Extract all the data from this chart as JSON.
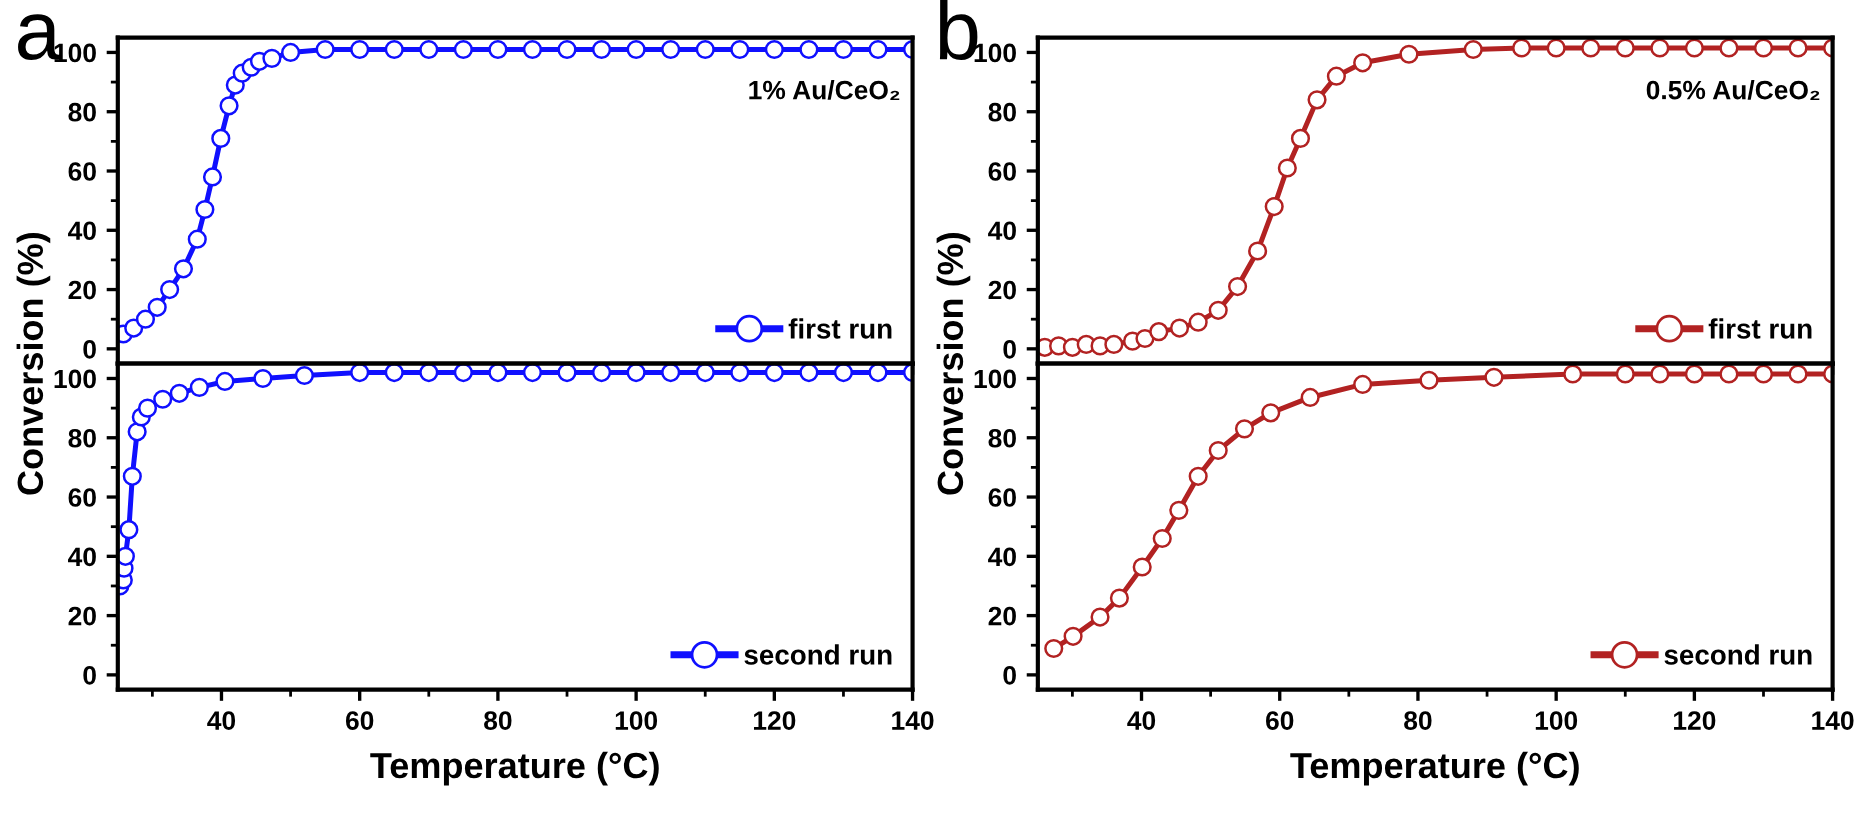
{
  "chart_data": [
    {
      "type": "line",
      "ylabel": "Conversion (%)",
      "annotations": [
        "a",
        "1% Au/CeO₂"
      ],
      "xlim": [
        25,
        140
      ],
      "xticks": [
        40,
        60,
        80,
        100,
        120,
        140
      ],
      "ylim": [
        -5,
        105
      ],
      "yticks": [
        0,
        20,
        40,
        60,
        80,
        100
      ],
      "tick_labels": "y",
      "marker": "circle",
      "line_style": "solid",
      "legend": "bottom right",
      "grid": false,
      "series": [
        {
          "name": "first run",
          "color": "#1010ff",
          "x": [
            25.8,
            27.3,
            29,
            30.7,
            32.5,
            34.5,
            36.5,
            37.6,
            38.7,
            39.9,
            41.1,
            42,
            43,
            44.3,
            45.5,
            47.3,
            50,
            55,
            60,
            65,
            70,
            75,
            80,
            85,
            90,
            95,
            100,
            105,
            110,
            115,
            120,
            125,
            130,
            135,
            140
          ],
          "values": [
            5,
            7,
            10,
            14,
            20,
            27,
            37,
            47,
            58,
            71,
            82,
            89,
            93,
            95,
            97,
            98,
            100,
            101,
            101,
            101,
            101,
            101,
            101,
            101,
            101,
            101,
            101,
            101,
            101,
            101,
            101,
            101,
            101,
            101,
            101
          ]
        }
      ]
    },
    {
      "type": "line",
      "xlabel": "Temperature (°C)",
      "xlim": [
        25,
        140
      ],
      "xticks": [
        40,
        60,
        80,
        100,
        120,
        140
      ],
      "ylim": [
        -5,
        105
      ],
      "yticks": [
        0,
        20,
        40,
        60,
        80,
        100
      ],
      "marker": "circle",
      "line_style": "solid",
      "legend": "bottom right",
      "grid": false,
      "series": [
        {
          "name": "second run",
          "color": "#1010ff",
          "x": [
            25.3,
            25.8,
            25.9,
            26.1,
            26.6,
            27.1,
            27.8,
            28.4,
            29.3,
            31.5,
            33.9,
            36.8,
            40.5,
            46,
            52,
            60,
            65,
            70,
            75,
            80,
            85,
            90,
            95,
            100,
            105,
            110,
            115,
            120,
            125,
            130,
            135,
            140
          ],
          "values": [
            30,
            32,
            36,
            40,
            49,
            67,
            82,
            87,
            90,
            93,
            95,
            97,
            99,
            100,
            101,
            102,
            102,
            102,
            102,
            102,
            102,
            102,
            102,
            102,
            102,
            102,
            102,
            102,
            102,
            102,
            102,
            102
          ]
        }
      ]
    },
    {
      "type": "line",
      "ylabel": "Conversion (%)",
      "annotations": [
        "b",
        "0.5% Au/CeO₂"
      ],
      "xlim": [
        25,
        140
      ],
      "xticks": [
        40,
        60,
        80,
        100,
        120,
        140
      ],
      "ylim": [
        -5,
        105
      ],
      "yticks": [
        0,
        20,
        40,
        60,
        80,
        100
      ],
      "tick_labels": "y",
      "marker": "circle",
      "line_style": "solid",
      "legend": "bottom right",
      "grid": false,
      "series": [
        {
          "name": "first run",
          "color": "#b22222",
          "x": [
            26,
            28,
            30,
            32,
            34,
            36,
            38.7,
            40.5,
            42.5,
            45.5,
            48.2,
            51.1,
            53.9,
            56.8,
            59.2,
            61.1,
            63,
            65.4,
            68.2,
            72,
            78.7,
            88,
            95,
            100,
            105,
            110,
            115,
            120,
            125,
            130,
            135,
            140
          ],
          "values": [
            0.5,
            1,
            0.5,
            1.5,
            1,
            1.5,
            2.6,
            3.5,
            5.8,
            7,
            9,
            13,
            21,
            33,
            48,
            61,
            71,
            84,
            92,
            96.5,
            99.4,
            101,
            101.5,
            101.5,
            101.5,
            101.5,
            101.5,
            101.5,
            101.5,
            101.5,
            101.5,
            101.5
          ]
        }
      ]
    },
    {
      "type": "line",
      "xlabel": "Temperature (°C)",
      "xlim": [
        25,
        140
      ],
      "xticks": [
        40,
        60,
        80,
        100,
        120,
        140
      ],
      "ylim": [
        -5,
        105
      ],
      "yticks": [
        0,
        20,
        40,
        60,
        80,
        100
      ],
      "marker": "circle",
      "line_style": "solid",
      "legend": "bottom right",
      "grid": false,
      "series": [
        {
          "name": "second run",
          "color": "#b22222",
          "x": [
            27.3,
            30.1,
            34,
            36.8,
            40.1,
            43,
            45.4,
            48.2,
            51.1,
            54.9,
            58.7,
            64.4,
            72,
            81.6,
            91,
            102.4,
            110,
            115,
            120,
            125,
            130,
            135,
            140
          ],
          "values": [
            8.9,
            13,
            19.5,
            25.9,
            36.4,
            46,
            55.5,
            67,
            75.7,
            83,
            88.4,
            93.6,
            98,
            99.4,
            100.4,
            101.5,
            101.5,
            101.5,
            101.5,
            101.5,
            101.5,
            101.5,
            101.5
          ]
        }
      ]
    }
  ]
}
